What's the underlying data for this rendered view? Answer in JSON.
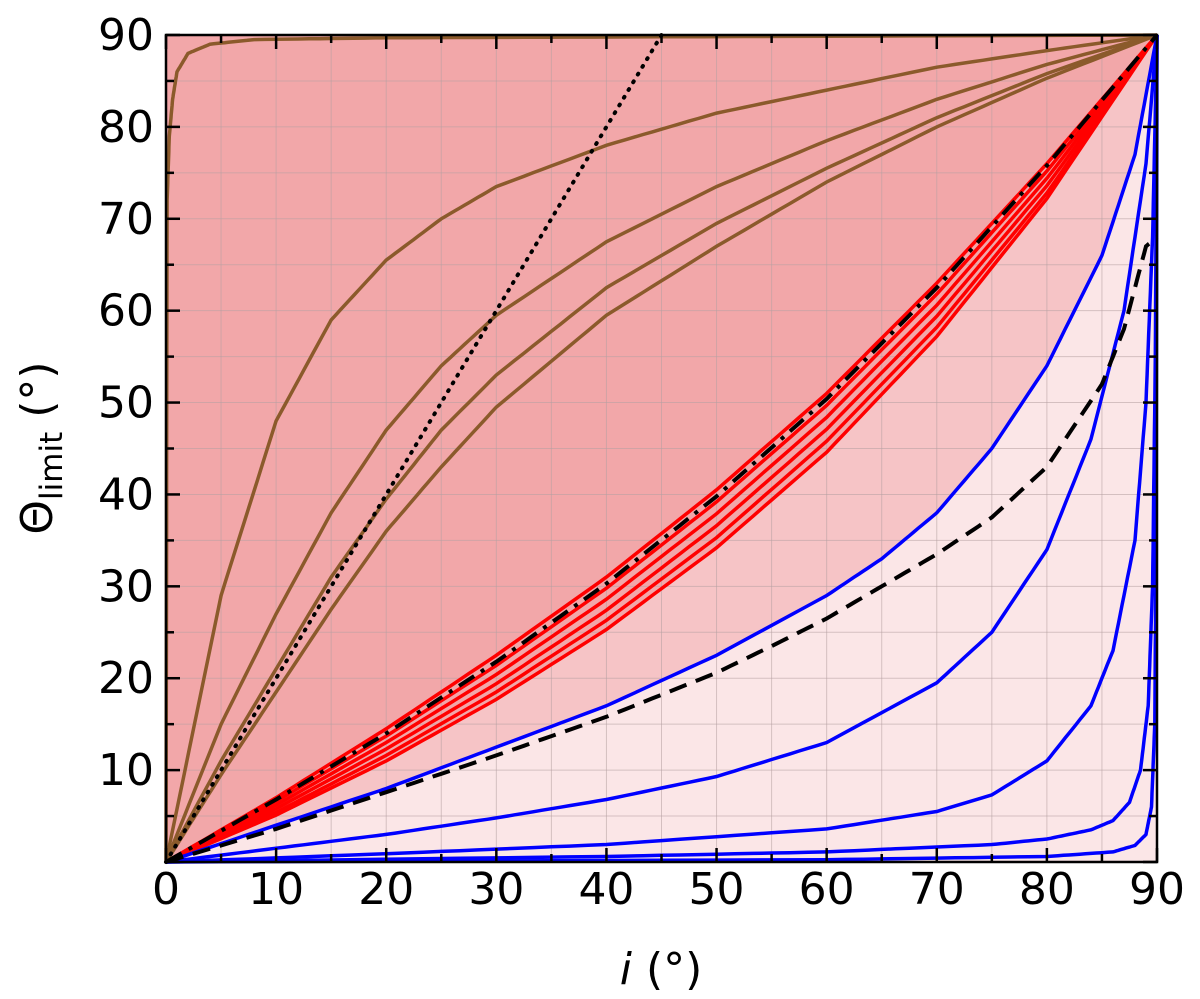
{
  "chart_data": {
    "type": "line",
    "title": "",
    "xlabel": {
      "italic": "i",
      "rest": " (°)"
    },
    "ylabel": {
      "main": "Θ",
      "sub": "limit",
      "rest": " (°)"
    },
    "xlim": [
      0,
      90
    ],
    "ylim": [
      0,
      90
    ],
    "xticks": [
      0,
      10,
      20,
      30,
      40,
      50,
      60,
      70,
      80,
      90
    ],
    "yticks": [
      10,
      20,
      30,
      40,
      50,
      60,
      70,
      80,
      90
    ],
    "grid": true,
    "colors": {
      "brown": "#8b5a2b",
      "red": "#ff0000",
      "blue": "#0000ff",
      "black": "#000000",
      "fill_dark": "#f2a7a9",
      "fill_mid": "#f6c4c6",
      "fill_light": "#fbe6e7"
    },
    "series": [
      {
        "group": "brown",
        "style": "solid",
        "x": [
          0,
          0.1,
          0.3,
          0.6,
          1,
          2,
          4,
          8,
          20,
          45,
          90
        ],
        "y": [
          0,
          72,
          79,
          83,
          86,
          88,
          89,
          89.5,
          89.7,
          89.8,
          90
        ]
      },
      {
        "group": "brown",
        "style": "solid",
        "x": [
          0,
          5,
          10,
          15,
          20,
          25,
          30,
          40,
          50,
          60,
          70,
          80,
          90
        ],
        "y": [
          0,
          29,
          48,
          59,
          65.5,
          70,
          73.5,
          78,
          81.5,
          84,
          86.5,
          88.3,
          90
        ]
      },
      {
        "group": "brown",
        "style": "solid",
        "x": [
          0,
          5,
          10,
          15,
          20,
          25,
          30,
          40,
          50,
          60,
          70,
          80,
          90
        ],
        "y": [
          0,
          15,
          27,
          38,
          47,
          54,
          59.5,
          67.5,
          73.5,
          78.5,
          83,
          86.8,
          90
        ]
      },
      {
        "group": "brown",
        "style": "solid",
        "x": [
          0,
          5,
          10,
          15,
          20,
          25,
          30,
          40,
          50,
          60,
          70,
          80,
          90
        ],
        "y": [
          0,
          11,
          21,
          31,
          39.5,
          47,
          53,
          62.5,
          69.5,
          75.5,
          81,
          85.8,
          90
        ]
      },
      {
        "group": "brown",
        "style": "solid",
        "x": [
          0,
          5,
          10,
          15,
          20,
          25,
          30,
          40,
          50,
          60,
          70,
          80,
          90
        ],
        "y": [
          0,
          9.5,
          18.5,
          27.5,
          36,
          43,
          49.5,
          59.5,
          67,
          74,
          80,
          85.3,
          90
        ]
      },
      {
        "group": "red",
        "style": "solid",
        "x": [
          0,
          10,
          20,
          30,
          40,
          50,
          60,
          70,
          80,
          90
        ],
        "y": [
          0,
          7,
          14.5,
          22.5,
          31,
          40.5,
          51,
          63,
          76,
          90
        ]
      },
      {
        "group": "red",
        "style": "solid",
        "x": [
          0,
          10,
          20,
          30,
          40,
          50,
          60,
          70,
          80,
          90
        ],
        "y": [
          0,
          6.6,
          13.7,
          21.4,
          29.8,
          39.2,
          49.7,
          61.8,
          75.2,
          90
        ]
      },
      {
        "group": "red",
        "style": "solid",
        "x": [
          0,
          10,
          20,
          30,
          40,
          50,
          60,
          70,
          80,
          90
        ],
        "y": [
          0,
          6.2,
          13,
          20.4,
          28.6,
          37.9,
          48.4,
          60.6,
          74.4,
          90
        ]
      },
      {
        "group": "red",
        "style": "solid",
        "x": [
          0,
          10,
          20,
          30,
          40,
          50,
          60,
          70,
          80,
          90
        ],
        "y": [
          0,
          5.8,
          12.3,
          19.4,
          27.4,
          36.6,
          47.1,
          59.4,
          73.6,
          90
        ]
      },
      {
        "group": "red",
        "style": "solid",
        "x": [
          0,
          10,
          20,
          30,
          40,
          50,
          60,
          70,
          80,
          90
        ],
        "y": [
          0,
          5.4,
          11.6,
          18.5,
          26.3,
          35.3,
          45.8,
          58.2,
          72.8,
          90
        ]
      },
      {
        "group": "red",
        "style": "solid",
        "x": [
          0,
          10,
          20,
          30,
          40,
          50,
          60,
          70,
          80,
          90
        ],
        "y": [
          0,
          5.1,
          11,
          17.7,
          25.3,
          34.2,
          44.6,
          57.2,
          72.2,
          90
        ]
      },
      {
        "group": "black",
        "style": "dashdot",
        "x": [
          0,
          10,
          20,
          30,
          40,
          50,
          60,
          70,
          80,
          90
        ],
        "y": [
          0,
          6.8,
          14,
          21.8,
          30.3,
          39.8,
          50.4,
          62.5,
          75.8,
          90
        ]
      },
      {
        "group": "blue",
        "style": "solid",
        "x": [
          0,
          10,
          20,
          30,
          40,
          50,
          60,
          65,
          70,
          75,
          80,
          85,
          88,
          90
        ],
        "y": [
          0,
          4,
          8,
          12.5,
          17,
          22.5,
          29,
          33,
          38,
          45,
          54,
          66,
          77,
          90
        ]
      },
      {
        "group": "blue",
        "style": "solid",
        "x": [
          0,
          10,
          20,
          30,
          40,
          50,
          60,
          70,
          75,
          80,
          84,
          87,
          89,
          90
        ],
        "y": [
          0,
          1.5,
          3,
          4.8,
          6.8,
          9.3,
          13,
          19.5,
          25,
          34,
          46,
          60,
          76,
          90
        ]
      },
      {
        "group": "blue",
        "style": "solid",
        "x": [
          0,
          20,
          40,
          60,
          70,
          75,
          80,
          84,
          86,
          88,
          89,
          89.6,
          90
        ],
        "y": [
          0,
          0.9,
          1.9,
          3.6,
          5.5,
          7.3,
          11,
          17,
          23,
          35,
          50,
          68,
          90
        ]
      },
      {
        "group": "blue",
        "style": "solid",
        "x": [
          0,
          40,
          60,
          75,
          80,
          84,
          86,
          87.5,
          88.5,
          89.2,
          89.6,
          89.85,
          90
        ],
        "y": [
          0,
          0.6,
          1.1,
          1.9,
          2.5,
          3.5,
          4.5,
          6.5,
          10,
          17,
          30,
          55,
          90
        ]
      },
      {
        "group": "blue",
        "style": "solid",
        "x": [
          0,
          60,
          80,
          86,
          88,
          89,
          89.5,
          89.8,
          89.92,
          90
        ],
        "y": [
          0,
          0.25,
          0.6,
          1.1,
          1.8,
          3,
          6,
          15,
          35,
          90
        ]
      },
      {
        "group": "black",
        "style": "dashed",
        "x": [
          0,
          10,
          20,
          30,
          40,
          50,
          55,
          60,
          65,
          70,
          75,
          80,
          85,
          87,
          89,
          90
        ],
        "y": [
          0,
          3.6,
          7.6,
          11.6,
          15.8,
          20.6,
          23.5,
          26.5,
          30,
          33.5,
          37.5,
          43,
          52,
          58,
          67,
          68
        ]
      },
      {
        "group": "black",
        "style": "dotted",
        "x": [
          0,
          45
        ],
        "y": [
          0,
          90
        ]
      }
    ],
    "regions": [
      {
        "name": "upper",
        "color": "fill_dark"
      },
      {
        "name": "middle",
        "color": "fill_mid"
      },
      {
        "name": "lower",
        "color": "fill_light"
      }
    ]
  }
}
